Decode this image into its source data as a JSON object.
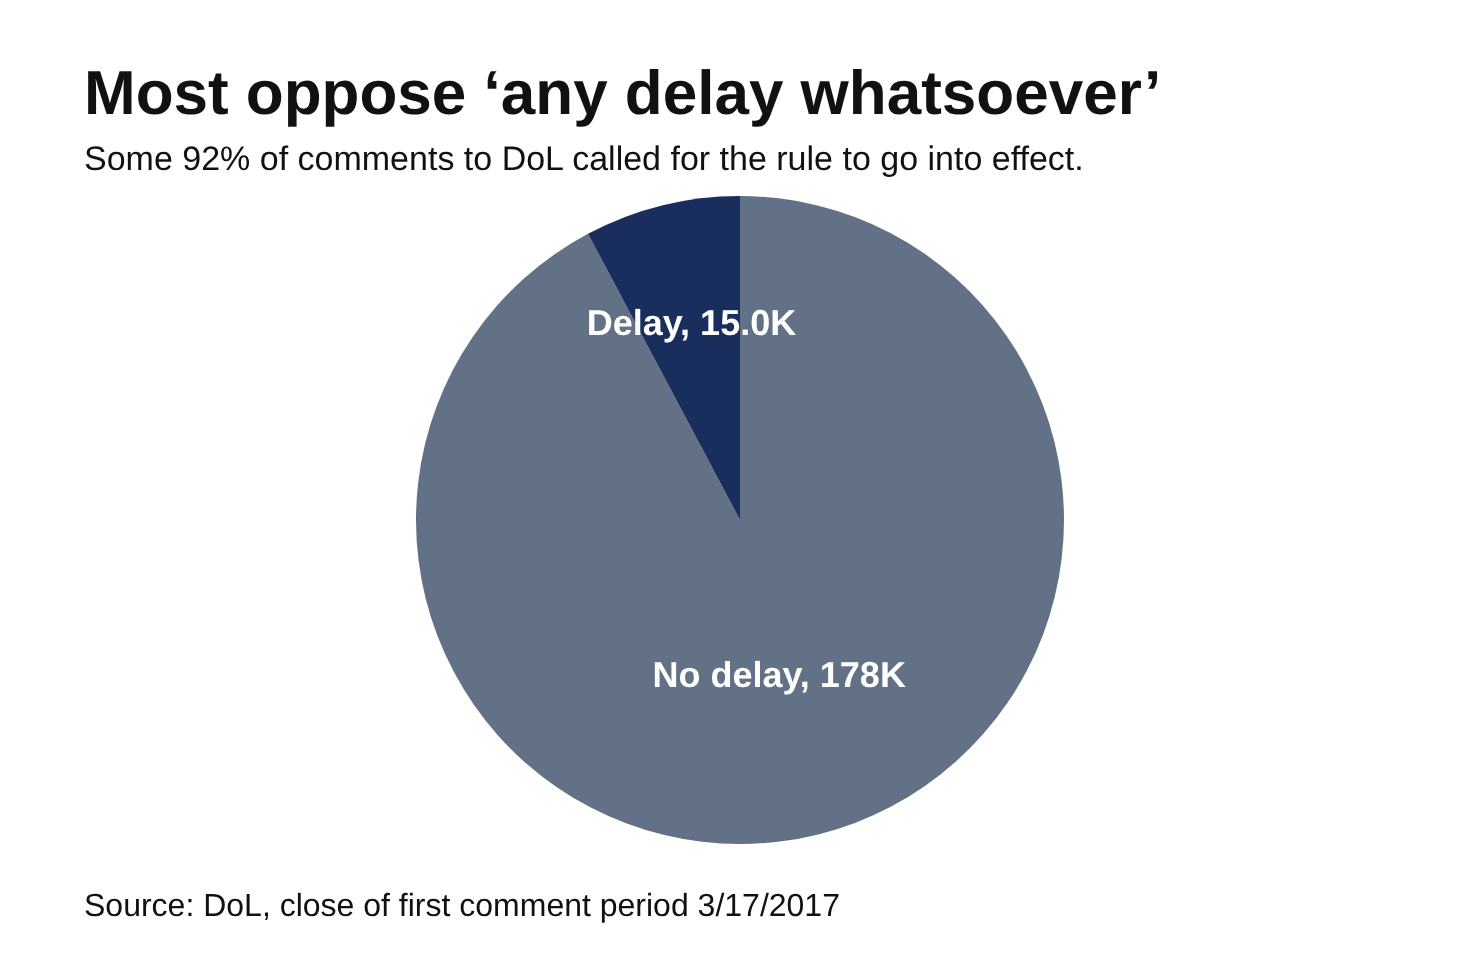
{
  "chart_data": {
    "type": "pie",
    "title": "Most oppose ‘any delay whatsoever’",
    "subtitle": "Some 92% of comments to DoL called for the rule to go into effect.",
    "categories": [
      "No delay",
      "Delay"
    ],
    "values": [
      178,
      15.0
    ],
    "value_labels": [
      "178K",
      "15.0K"
    ],
    "colors": [
      "#627186",
      "#1a2e5e"
    ],
    "annotations": [
      "Source: DoL, close of first comment period 3/17/2017"
    ]
  }
}
